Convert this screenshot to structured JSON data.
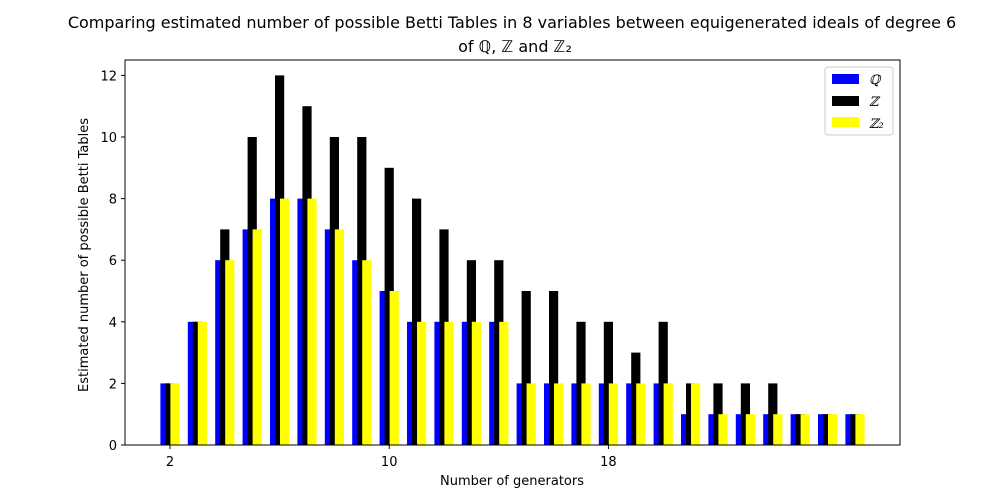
{
  "chart_data": {
    "type": "bar",
    "title_line1": "Comparing estimated number of possible Betti Tables in 8 variables between equigenerated ideals of degree 6",
    "title_line2": "of ℚ, ℤ and  ℤ₂",
    "xlabel": "Number of generators",
    "ylabel": "Estimated number of  possible Betti Tables",
    "categories": [
      2,
      3,
      4,
      5,
      6,
      7,
      8,
      9,
      10,
      11,
      12,
      13,
      14,
      15,
      16,
      17,
      18,
      19,
      20,
      21,
      22,
      23,
      24,
      25,
      26,
      27
    ],
    "xticks": [
      2,
      10,
      18
    ],
    "ylim": [
      0,
      12.5
    ],
    "yticks": [
      0,
      2,
      4,
      6,
      8,
      10,
      12
    ],
    "series": [
      {
        "name": "ℚ",
        "color": "#0000ff",
        "values": [
          2,
          4,
          6,
          7,
          8,
          8,
          7,
          6,
          5,
          4,
          4,
          4,
          4,
          2,
          2,
          2,
          2,
          2,
          2,
          1,
          1,
          1,
          1,
          1,
          1,
          1
        ]
      },
      {
        "name": "ℤ",
        "color": "#000000",
        "values": [
          2,
          4,
          7,
          10,
          12,
          11,
          10,
          10,
          9,
          8,
          7,
          6,
          6,
          5,
          5,
          4,
          4,
          3,
          4,
          2,
          2,
          2,
          2,
          1,
          1,
          1
        ]
      },
      {
        "name": "ℤ₂",
        "color": "#ffff00",
        "values": [
          2,
          4,
          6,
          7,
          8,
          8,
          7,
          6,
          5,
          4,
          4,
          4,
          4,
          2,
          2,
          2,
          2,
          2,
          2,
          2,
          1,
          1,
          1,
          1,
          1,
          1
        ]
      }
    ],
    "legend_position": "top-right"
  }
}
